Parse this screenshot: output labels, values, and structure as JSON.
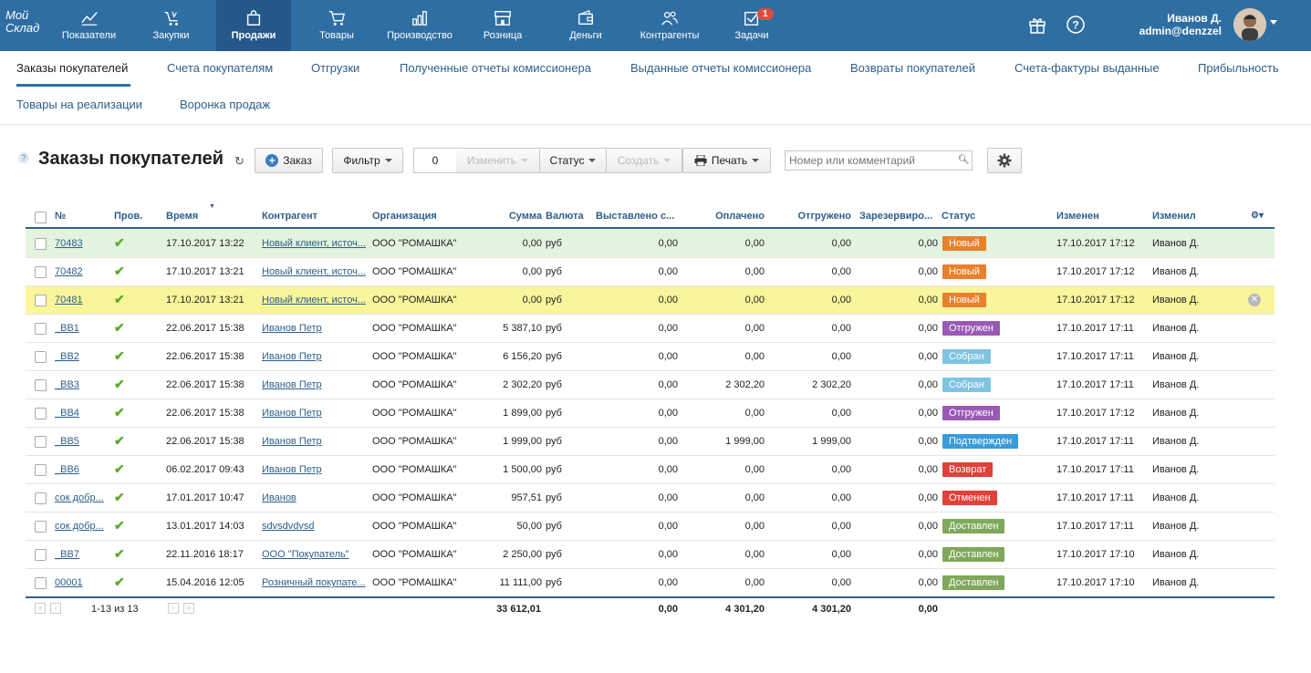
{
  "app": {
    "logo": "Мой Склад",
    "nav": [
      {
        "label": "Показатели",
        "icon": "chart-icon"
      },
      {
        "label": "Закупки",
        "icon": "cart-in-icon"
      },
      {
        "label": "Продажи",
        "icon": "bag-icon"
      },
      {
        "label": "Товары",
        "icon": "cart-icon"
      },
      {
        "label": "Производство",
        "icon": "factory-icon"
      },
      {
        "label": "Розница",
        "icon": "store-icon"
      },
      {
        "label": "Деньги",
        "icon": "wallet-icon"
      },
      {
        "label": "Контрагенты",
        "icon": "people-icon"
      },
      {
        "label": "Задачи",
        "icon": "task-icon",
        "badge": "1"
      }
    ],
    "active_nav": "Продажи",
    "user": {
      "name": "Иванов Д.",
      "login": "admin@denzzel"
    }
  },
  "subnav": [
    "Заказы покупателей",
    "Счета покупателям",
    "Отгрузки",
    "Полученные отчеты комиссионера",
    "Выданные отчеты комиссионера",
    "Возвраты покупателей",
    "Счета-фактуры выданные",
    "Прибыльность",
    "Товары на реализации",
    "Воронка продаж"
  ],
  "toolbar": {
    "title": "Заказы покупателей",
    "order_btn": "Заказ",
    "filter_btn": "Фильтр",
    "selected_count": "0",
    "change_btn": "Изменить",
    "status_btn": "Статус",
    "create_btn": "Создать",
    "print_btn": "Печать",
    "search_placeholder": "Номер или комментарий"
  },
  "table": {
    "headers": [
      "№",
      "Пров.",
      "Время",
      "Контрагент",
      "Организация",
      "Сумма",
      "Валюта",
      "Выставлено с...",
      "Оплачено",
      "Отгружено",
      "Зарезервиро...",
      "Статус",
      "Изменен",
      "Изменил"
    ],
    "rows": [
      {
        "num": "70483",
        "time": "17.10.2017 13:22",
        "agent": "Новый клиент, источ...",
        "org": "ООО \"РОМАШКА\"",
        "sum": "0,00",
        "cur": "руб",
        "billed": "0,00",
        "paid": "0,00",
        "shipped": "0,00",
        "reserved": "0,00",
        "status": "Новый",
        "status_color": "#e8802e",
        "changed": "17.10.2017 17:12",
        "by": "Иванов Д."
      },
      {
        "num": "70482",
        "time": "17.10.2017 13:21",
        "agent": "Новый клиент, источ...",
        "org": "ООО \"РОМАШКА\"",
        "sum": "0,00",
        "cur": "руб",
        "billed": "0,00",
        "paid": "0,00",
        "shipped": "0,00",
        "reserved": "0,00",
        "status": "Новый",
        "status_color": "#e8802e",
        "changed": "17.10.2017 17:12",
        "by": "Иванов Д."
      },
      {
        "num": "70481",
        "time": "17.10.2017 13:21",
        "agent": "Новый клиент, источ...",
        "org": "ООО \"РОМАШКА\"",
        "sum": "0,00",
        "cur": "руб",
        "billed": "0,00",
        "paid": "0,00",
        "shipped": "0,00",
        "reserved": "0,00",
        "status": "Новый",
        "status_color": "#e8802e",
        "changed": "17.10.2017 17:12",
        "by": "Иванов Д."
      },
      {
        "num": "_BB1",
        "time": "22.06.2017 15:38",
        "agent": "Иванов Петр",
        "org": "ООО \"РОМАШКА\"",
        "sum": "5 387,10",
        "cur": "руб",
        "billed": "0,00",
        "paid": "0,00",
        "shipped": "0,00",
        "reserved": "0,00",
        "status": "Отгружен",
        "status_color": "#9b59b6",
        "changed": "17.10.2017 17:11",
        "by": "Иванов Д."
      },
      {
        "num": "_BB2",
        "time": "22.06.2017 15:38",
        "agent": "Иванов Петр",
        "org": "ООО \"РОМАШКА\"",
        "sum": "6 156,20",
        "cur": "руб",
        "billed": "0,00",
        "paid": "0,00",
        "shipped": "0,00",
        "reserved": "0,00",
        "status": "Собран",
        "status_color": "#7fc4e3",
        "changed": "17.10.2017 17:11",
        "by": "Иванов Д."
      },
      {
        "num": "_BB3",
        "time": "22.06.2017 15:38",
        "agent": "Иванов Петр",
        "org": "ООО \"РОМАШКА\"",
        "sum": "2 302,20",
        "cur": "руб",
        "billed": "0,00",
        "paid": "2 302,20",
        "shipped": "2 302,20",
        "reserved": "0,00",
        "status": "Собран",
        "status_color": "#7fc4e3",
        "changed": "17.10.2017 17:11",
        "by": "Иванов Д."
      },
      {
        "num": "_BB4",
        "time": "22.06.2017 15:38",
        "agent": "Иванов Петр",
        "org": "ООО \"РОМАШКА\"",
        "sum": "1 899,00",
        "cur": "руб",
        "billed": "0,00",
        "paid": "0,00",
        "shipped": "0,00",
        "reserved": "0,00",
        "status": "Отгружен",
        "status_color": "#9b59b6",
        "changed": "17.10.2017 17:12",
        "by": "Иванов Д."
      },
      {
        "num": "_BB5",
        "time": "22.06.2017 15:38",
        "agent": "Иванов Петр",
        "org": "ООО \"РОМАШКА\"",
        "sum": "1 999,00",
        "cur": "руб",
        "billed": "0,00",
        "paid": "1 999,00",
        "shipped": "1 999,00",
        "reserved": "0,00",
        "status": "Подтвержден",
        "status_color": "#3a9bd9",
        "changed": "17.10.2017 17:11",
        "by": "Иванов Д."
      },
      {
        "num": "_BB6",
        "time": "06.02.2017 09:43",
        "agent": "Иванов Петр",
        "org": "ООО \"РОМАШКА\"",
        "sum": "1 500,00",
        "cur": "руб",
        "billed": "0,00",
        "paid": "0,00",
        "shipped": "0,00",
        "reserved": "0,00",
        "status": "Возврат",
        "status_color": "#e0413a",
        "changed": "17.10.2017 17:11",
        "by": "Иванов Д."
      },
      {
        "num": "сок добр...",
        "time": "17.01.2017 10:47",
        "agent": "Иванов",
        "org": "ООО \"РОМАШКА\"",
        "sum": "957,51",
        "cur": "руб",
        "billed": "0,00",
        "paid": "0,00",
        "shipped": "0,00",
        "reserved": "0,00",
        "status": "Отменен",
        "status_color": "#e0413a",
        "changed": "17.10.2017 17:11",
        "by": "Иванов Д."
      },
      {
        "num": "сок добр...",
        "time": "13.01.2017 14:03",
        "agent": "sdvsdvdvsd",
        "org": "ООО \"РОМАШКА\"",
        "sum": "50,00",
        "cur": "руб",
        "billed": "0,00",
        "paid": "0,00",
        "shipped": "0,00",
        "reserved": "0,00",
        "status": "Доставлен",
        "status_color": "#7fa85a",
        "changed": "17.10.2017 17:11",
        "by": "Иванов Д."
      },
      {
        "num": "_BB7",
        "time": "22.11.2016 18:17",
        "agent": "ООО \"Покупатель\"",
        "org": "ООО \"РОМАШКА\"",
        "sum": "2 250,00",
        "cur": "руб",
        "billed": "0,00",
        "paid": "0,00",
        "shipped": "0,00",
        "reserved": "0,00",
        "status": "Доставлен",
        "status_color": "#7fa85a",
        "changed": "17.10.2017 17:10",
        "by": "Иванов Д."
      },
      {
        "num": "00001",
        "time": "15.04.2016 12:05",
        "agent": "Розничный покупате...",
        "org": "ООО \"РОМАШКА\"",
        "sum": "11 111,00",
        "cur": "руб",
        "billed": "0,00",
        "paid": "0,00",
        "shipped": "0,00",
        "reserved": "0,00",
        "status": "Доставлен",
        "status_color": "#7fa85a",
        "changed": "17.10.2017 17:10",
        "by": "Иванов Д."
      }
    ],
    "footer": {
      "range": "1-13 из 13",
      "sum": "33 612,01",
      "billed": "0,00",
      "paid": "4 301,20",
      "shipped": "4 301,20",
      "reserved": "0,00"
    }
  }
}
